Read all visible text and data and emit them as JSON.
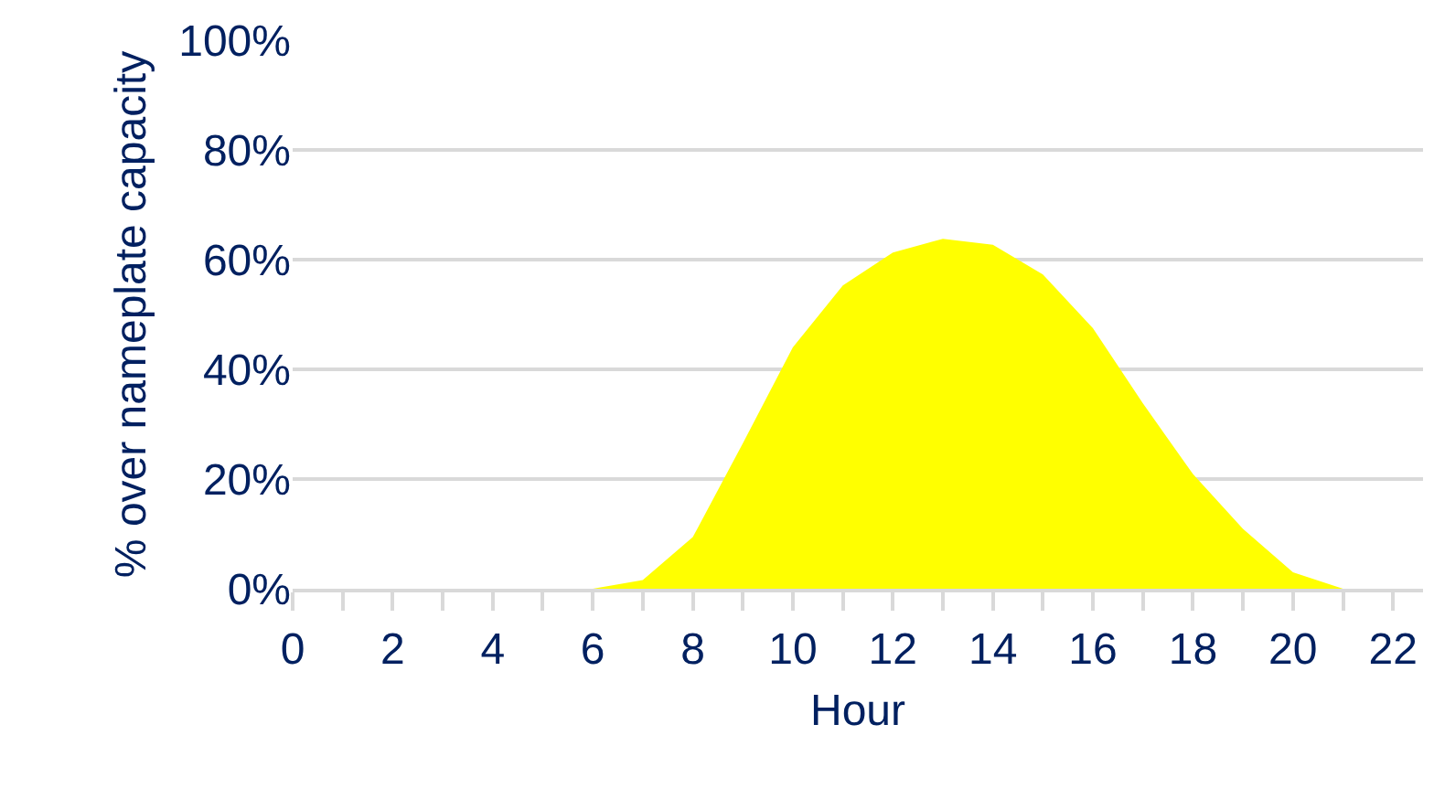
{
  "chart_data": {
    "type": "area",
    "xlabel": "Hour",
    "ylabel": "% over nameplate capacity",
    "x": [
      0,
      1,
      2,
      3,
      4,
      5,
      6,
      7,
      8,
      9,
      10,
      11,
      12,
      13,
      14,
      15,
      16,
      17,
      18,
      19,
      20,
      21,
      22
    ],
    "series": [
      {
        "color": "#ffff00",
        "values": [
          0,
          0,
          0,
          0,
          0,
          0,
          0,
          1.6,
          9.4,
          26.5,
          44,
          55.3,
          61.3,
          63.8,
          62.7,
          57.3,
          47.5,
          33.8,
          20.9,
          10.9,
          3,
          0,
          0
        ]
      }
    ],
    "xlim": [
      0,
      22.6
    ],
    "xticks": [
      0,
      {
        "value": 1,
        "label": null
      },
      2,
      {
        "value": 3,
        "label": null
      },
      4,
      {
        "value": 5,
        "label": null
      },
      6,
      {
        "value": 7,
        "label": null
      },
      8,
      {
        "value": 9,
        "label": null
      },
      10,
      {
        "value": 11,
        "label": null
      },
      12,
      {
        "value": 13,
        "label": null
      },
      14,
      {
        "value": 15,
        "label": null
      },
      16,
      {
        "value": 17,
        "label": null
      },
      18,
      {
        "value": 19,
        "label": null
      },
      20,
      {
        "value": 21,
        "label": null
      },
      22
    ],
    "ylim": [
      0,
      100
    ],
    "yticks": [
      {
        "value": 0,
        "label": "0%"
      },
      {
        "value": 20,
        "label": "20%"
      },
      {
        "value": 40,
        "label": "40%"
      },
      {
        "value": 60,
        "label": "60%"
      },
      {
        "value": 80,
        "label": "80%"
      },
      {
        "value": 100,
        "label": "100%"
      }
    ],
    "grid": "y",
    "marker": "none"
  }
}
